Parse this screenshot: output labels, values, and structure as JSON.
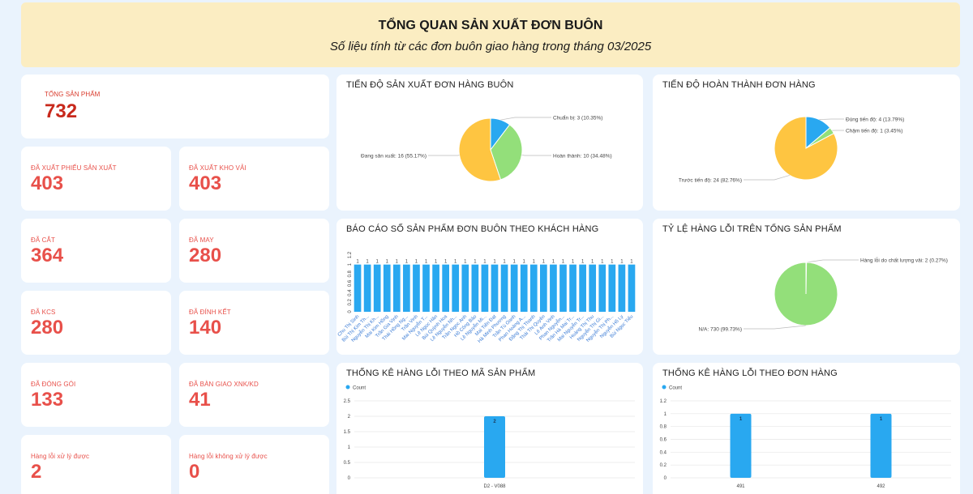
{
  "header": {
    "title": "TỔNG QUAN SẢN XUẤT ĐƠN BUÔN",
    "subtitle": "Số liệu tính từ các đơn buôn giao hàng trong tháng 03/2025"
  },
  "kpis": {
    "total": {
      "label": "TỔNG SẢN PHẨM",
      "value": "732"
    },
    "xuat_phieu": {
      "label": "ĐÃ XUẤT PHIẾU SẢN XUẤT",
      "value": "403"
    },
    "xuat_kho_vai": {
      "label": "ĐÃ XUẤT KHO VẢI",
      "value": "403"
    },
    "cat": {
      "label": "ĐÃ CẮT",
      "value": "364"
    },
    "may": {
      "label": "ĐÃ MAY",
      "value": "280"
    },
    "kcs": {
      "label": "ĐÃ KCS",
      "value": "280"
    },
    "dinh_ket": {
      "label": "ĐÃ ĐÍNH KẾT",
      "value": "140"
    },
    "dong_goi": {
      "label": "ĐÃ ĐÓNG GÓI",
      "value": "133"
    },
    "ban_giao": {
      "label": "ĐÃ BÀN GIAO XNK/KD",
      "value": "41"
    },
    "loi_xu_ly": {
      "label": "Hàng lỗi xử lý được",
      "value": "2"
    },
    "loi_khong_xu_ly": {
      "label": "Hàng lỗi không xử lý được",
      "value": "0"
    }
  },
  "colors": {
    "blue": "#29a8f0",
    "green": "#93df7a",
    "yellow": "#fec541",
    "kpi_red": "#e8504a"
  },
  "chart_data": [
    {
      "type": "pie",
      "title": "TIẾN ĐỘ SẢN XUẤT ĐƠN HÀNG BUÔN",
      "slices": [
        {
          "label": "Chuẩn bị: 3 (10.35%)",
          "value": 3,
          "color": "#29a8f0"
        },
        {
          "label": "Hoàn thành: 10 (34.48%)",
          "value": 10,
          "color": "#93df7a"
        },
        {
          "label": "Đang sản xuất: 16 (55.17%)",
          "value": 16,
          "color": "#fec541"
        }
      ]
    },
    {
      "type": "pie",
      "title": "TIẾN ĐỘ HOÀN THÀNH ĐƠN HÀNG",
      "slices": [
        {
          "label": "Đúng tiến độ: 4 (13.79%)",
          "value": 4,
          "color": "#29a8f0"
        },
        {
          "label": "Chậm tiến độ: 1 (3.45%)",
          "value": 1,
          "color": "#93df7a"
        },
        {
          "label": "Trước tiến độ: 24 (82.76%)",
          "value": 24,
          "color": "#fec541"
        }
      ]
    },
    {
      "type": "bar",
      "title": "BÁO CÁO SỐ SẢN PHẨM ĐƠN BUÔN THEO KHÁCH HÀNG",
      "yticks": [
        "0",
        "0.2",
        "0.4",
        "0.6",
        "0.8",
        "1",
        "1.2"
      ],
      "ylim": [
        0,
        1.2
      ],
      "categories": [
        "Chu Thị Sinh",
        "Bùi Thị Kim Th...",
        "Nguyễn Thị Kh...",
        "Mai Kim Hồng",
        "Trần Gia Vịnh",
        "Thái Hồng Ng...",
        "Trần Vinh",
        "Mai Nguyễn T...",
        "Lê Ngọc Hân",
        "Bùi Quỳnh Hoa",
        "Lê Nguyễn Nh...",
        "Trần Ngọc Anh",
        "Hồ Công Bảo",
        "Lê Nguyễn Mi...",
        "Mai Tiến Đạt",
        "Hà Minh Phương",
        "Trần Tú Oanh",
        "Phan Hoàng A...",
        "Đặng Thị Thanh",
        "Thái Thị Quyên",
        "Lê Anh Vinh",
        "Phan Nguyễn...",
        "Trần Hà Mai Tr...",
        "Mai Nguyễn Tr...",
        "Hoàng Thị Thu",
        "Nguyễn Thị Gi...",
        "Nguyễn Thị Ph...",
        "Nguyễn Hồ Ly",
        "Bùi Ngọc Tiểu"
      ],
      "values": [
        1,
        1,
        1,
        1,
        1,
        1,
        1,
        1,
        1,
        1,
        1,
        1,
        1,
        1,
        1,
        1,
        1,
        1,
        1,
        1,
        1,
        1,
        1,
        1,
        1,
        1,
        1,
        1,
        1
      ],
      "color": "#29a8f0"
    },
    {
      "type": "pie",
      "title": "TỶ LỆ HÀNG LỖI TRÊN TỔNG SẢN PHẨM",
      "slices": [
        {
          "label": "Hàng lỗi do chất lượng vải: 2 (0.27%)",
          "value": 2,
          "color": "#29a8f0"
        },
        {
          "label": "N/A: 730 (99.73%)",
          "value": 730,
          "color": "#93df7a"
        }
      ]
    },
    {
      "type": "bar",
      "title": "THỐNG KÊ HÀNG LỖI THEO MÃ SẢN PHẨM",
      "legend": "Count",
      "yticks": [
        "0",
        "0.5",
        "1",
        "1.5",
        "2",
        "2.5"
      ],
      "ylim": [
        0,
        2.5
      ],
      "categories": [
        "D2 - V088"
      ],
      "values": [
        2
      ],
      "color": "#29a8f0"
    },
    {
      "type": "bar",
      "title": "THỐNG KÊ HÀNG LỖI THEO ĐƠN HÀNG",
      "legend": "Count",
      "yticks": [
        "0",
        "0.2",
        "0.4",
        "0.6",
        "0.8",
        "1",
        "1.2"
      ],
      "ylim": [
        0,
        1.2
      ],
      "categories": [
        "491",
        "492"
      ],
      "values": [
        1,
        1
      ],
      "color": "#29a8f0"
    }
  ]
}
